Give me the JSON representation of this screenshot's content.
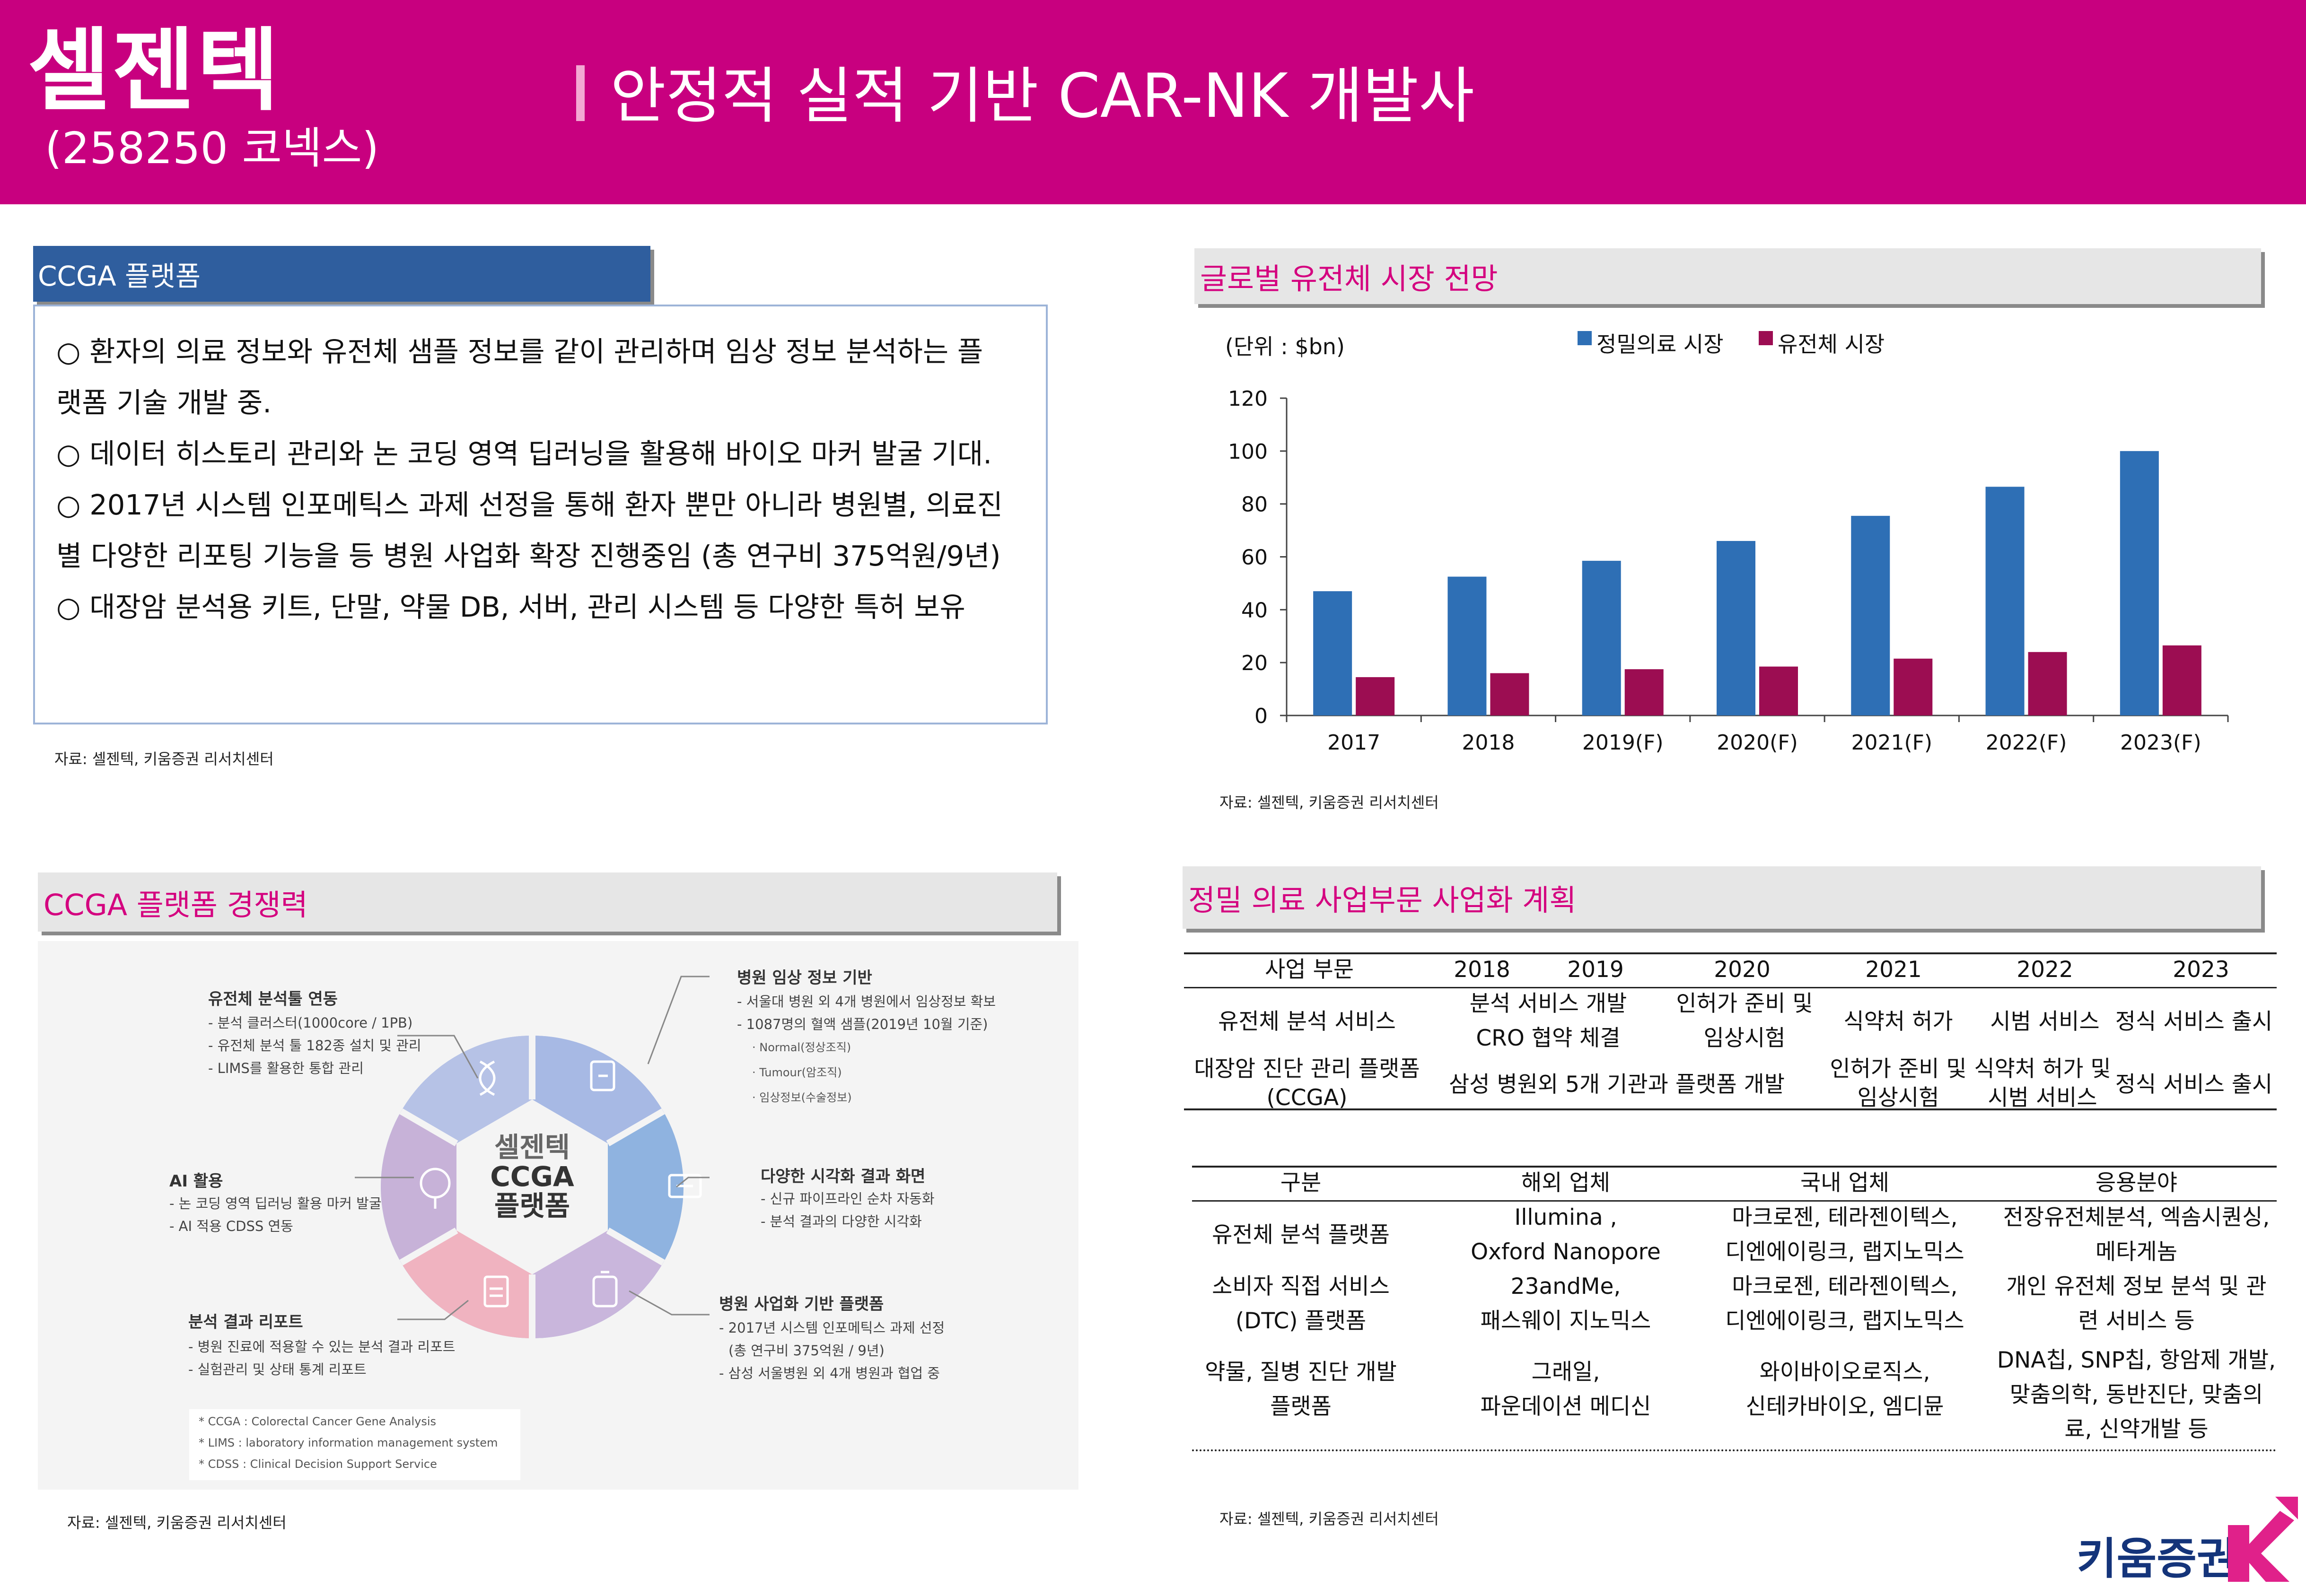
{
  "header": {
    "company": "셀젠텍",
    "code": "(258250 코넥스)",
    "title": "안정적 실적 기반 CAR-NK 개발사"
  },
  "ccga_section": {
    "title": "CCGA 플랫폼",
    "lines": [
      "○ 환자의 의료 정보와 유전체 샘플 정보를 같이 관리하며 임상 정보 분석하는 플",
      "랫폼 기술 개발 중.",
      "○ 데이터 히스토리 관리와 논 코딩 영역 딥러닝을 활용해 바이오 마커 발굴 기대.",
      "○ 2017년 시스템 인포메틱스 과제 선정을 통해 환자 뿐만 아니라 병원별, 의료진",
      "별 다양한 리포팅 기능을 등 병원 사업화 확장 진행중임 (총 연구비 375억원/9년)",
      "○ 대장암 분석용 키트, 단말, 약물 DB, 서버, 관리 시스템 등 다양한 특허 보유"
    ],
    "source": "자료: 셀젠텍, 키움증권 리서치센터"
  },
  "market_section": {
    "title": "글로벌 유전체 시장 전망",
    "source": "자료: 셀젠텍, 키움증권 리서치센터"
  },
  "chart_data": {
    "type": "bar",
    "unit_label": "(단위 : $bn)",
    "categories": [
      "2017",
      "2018",
      "2019(F)",
      "2020(F)",
      "2021(F)",
      "2022(F)",
      "2023(F)"
    ],
    "series": [
      {
        "name": "정밀의료 시장",
        "values": [
          47,
          52.5,
          58.5,
          66,
          75.5,
          86.5,
          100
        ],
        "color": "#2e6fb5"
      },
      {
        "name": "유전체 시장",
        "values": [
          14.5,
          16,
          17.5,
          18.5,
          21.5,
          24,
          26.5
        ],
        "color": "#9c0d52"
      }
    ],
    "ylim": [
      0,
      120
    ],
    "yticks": [
      0,
      20,
      40,
      60,
      80,
      100,
      120
    ],
    "legend": "top",
    "grid": false
  },
  "platform_section": {
    "title": "CCGA 플랫폼 경쟁력",
    "source": "자료: 셀젠텍, 키움증권 리서치센터",
    "center": [
      "셀젠텍",
      "CCGA",
      "플랫폼"
    ],
    "blocks": [
      {
        "title": "유전체 분석툴 연동",
        "items": [
          "- 분석 클러스터(1000core / 1PB)",
          "- 유전체 분석 툴 182종 설치 및 관리",
          "- LIMS를 활용한 통합 관리"
        ]
      },
      {
        "title": "병원 임상 정보 기반",
        "items": [
          "- 서울대 병원 외 4개 병원에서 임상정보 확보",
          "- 1087명의 혈액 샘플(2019년 10월 기준)"
        ],
        "subitems": [
          "· Normal(정상조직)",
          "· Tumour(암조직)",
          "· 임상정보(수술정보)"
        ]
      },
      {
        "title": "AI 활용",
        "items": [
          "- 논 코딩 영역 딥러닝 활용 마커 발굴",
          "- AI 적용 CDSS 연동"
        ]
      },
      {
        "title": "다양한 시각화 결과 화면",
        "items": [
          "- 신규 파이프라인 순차 자동화",
          "- 분석 결과의 다양한 시각화"
        ]
      },
      {
        "title": "분석 결과 리포트",
        "items": [
          "- 병원 진료에 적용할 수 있는 분석 결과 리포트",
          "- 실험관리 및 상태 통계 리포트"
        ]
      },
      {
        "title": "병원 사업화 기반 플랫폼",
        "items": [
          "- 2017년 시스템 인포메틱스 과제 선정",
          "(총 연구비 375억원 / 9년)",
          "- 삼성 서울병원 외 4개 병원과 협업 중"
        ]
      }
    ],
    "footnotes": [
      "* CCGA : Colorectal Cancer Gene Analysis",
      "* LIMS : laboratory information management system",
      "* CDSS : Clinical Decision Support Service"
    ]
  },
  "plan_section": {
    "title": "정밀 의료 사업부문 사업화 계획",
    "source": "자료: 셀젠텍, 키움증권 리서치센터",
    "table1": {
      "headers": [
        "사업 부문",
        "2018",
        "2019",
        "2020",
        "2021",
        "2022",
        "2023"
      ],
      "row1": [
        "유전체 분석 서비스",
        "분석 서비스 개발",
        "CRO 협약 체결",
        "인허가 준비 및",
        "임상시험",
        "식약처 허가",
        "시범 서비스",
        "정식 서비스 출시"
      ],
      "row2": [
        "대장암 진단 관리 플랫폼",
        "(CCGA)",
        "삼성 병원외 5개 기관과 플랫폼 개발",
        "인허가 준비 및",
        "임상시험",
        "식약처 허가 및",
        "시범 서비스",
        "정식 서비스 출시"
      ]
    },
    "table2": {
      "headers": [
        "구분",
        "해외 업체",
        "국내 업체",
        "응용분야"
      ],
      "rows": [
        [
          "유전체 분석 플랫폼",
          "Illumina ,",
          "Oxford Nanopore",
          "마크로젠, 테라젠이텍스,",
          "디엔에이링크, 랩지노믹스",
          "전장유전체분석, 엑솜시퀀싱,",
          "메타게놈"
        ],
        [
          "소비자 직접 서비스",
          "(DTC) 플랫폼",
          "23andMe,",
          "패스웨이 지노믹스",
          "마크로젠, 테라젠이텍스,",
          "디엔에이링크, 랩지노믹스",
          "개인 유전체 정보 분석 및 관",
          "련 서비스 등"
        ],
        [
          "약물, 질병 진단 개발",
          "플랫폼",
          "그래일,",
          "파운데이션 메디신",
          "와이바이오로직스,",
          "신테카바이오, 엠디뮨",
          "DNA칩, SNP칩, 항암제 개발,",
          "맞춤의학, 동반진단, 맞춤의",
          "료, 신약개발 등"
        ]
      ]
    }
  },
  "footer": {
    "logo_text": "키움증권",
    "logo_mark": "K"
  }
}
